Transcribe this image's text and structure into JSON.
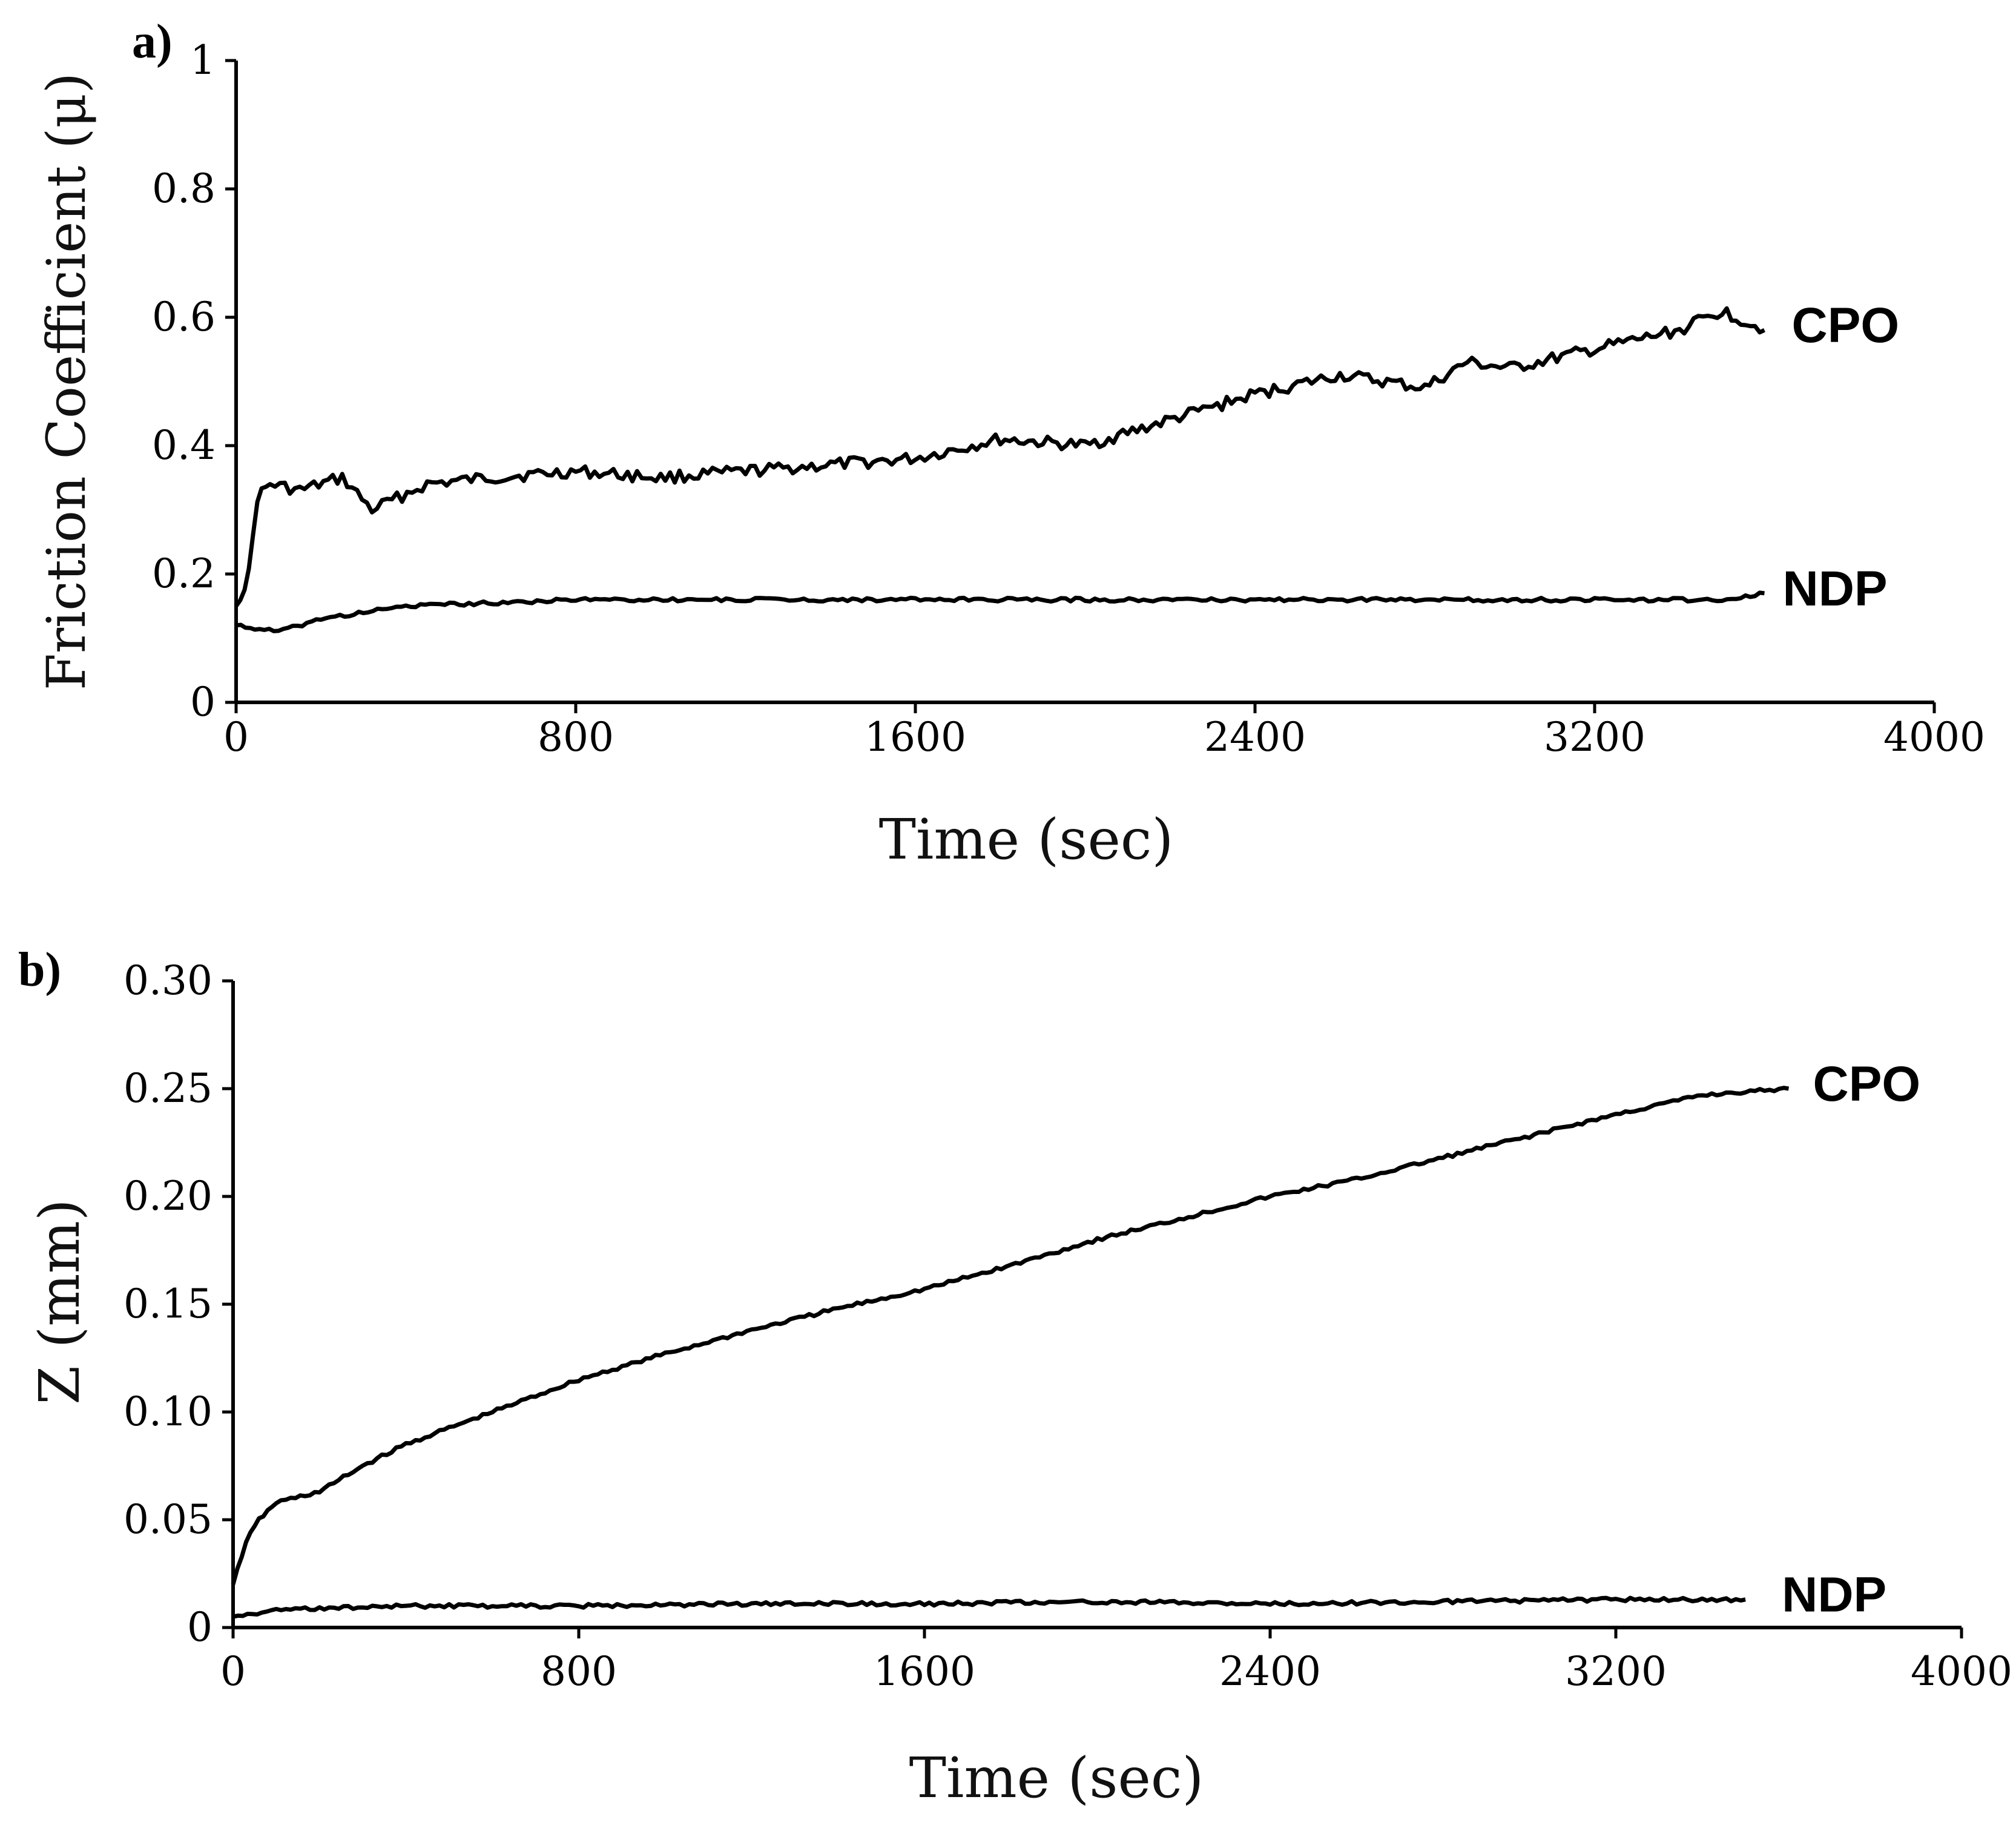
{
  "chart_data": [
    {
      "panel_label": "a)",
      "type": "line",
      "title": "",
      "xlabel": "Time (sec)",
      "ylabel": "Friction Coefficient (μ)",
      "xlim": [
        0,
        4000
      ],
      "ylim": [
        0,
        1
      ],
      "xticks": [
        "0",
        "800",
        "1600",
        "2400",
        "3200",
        "4000"
      ],
      "yticks": [
        "0",
        "0.2",
        "0.4",
        "0.6",
        "0.8",
        "1"
      ],
      "grid": false,
      "series": [
        {
          "name": "CPO",
          "x": [
            0,
            30,
            50,
            80,
            150,
            250,
            320,
            450,
            600,
            800,
            1000,
            1200,
            1400,
            1600,
            1800,
            2000,
            2200,
            2400,
            2600,
            2800,
            2900,
            3000,
            3200,
            3400,
            3500,
            3600
          ],
          "y": [
            0.15,
            0.2,
            0.32,
            0.34,
            0.33,
            0.35,
            0.3,
            0.34,
            0.35,
            0.36,
            0.35,
            0.36,
            0.37,
            0.38,
            0.41,
            0.4,
            0.44,
            0.48,
            0.51,
            0.49,
            0.53,
            0.52,
            0.55,
            0.58,
            0.61,
            0.58
          ]
        },
        {
          "name": "NDP",
          "x": [
            0,
            100,
            200,
            400,
            800,
            1200,
            1600,
            2000,
            2400,
            2800,
            3200,
            3500,
            3600
          ],
          "y": [
            0.12,
            0.11,
            0.13,
            0.15,
            0.16,
            0.16,
            0.16,
            0.16,
            0.16,
            0.16,
            0.16,
            0.16,
            0.17
          ]
        }
      ]
    },
    {
      "panel_label": "b)",
      "type": "line",
      "title": "",
      "xlabel": "Time (sec)",
      "ylabel": "Z (mm)",
      "xlim": [
        0,
        4000
      ],
      "ylim": [
        0,
        0.3
      ],
      "xticks": [
        "0",
        "800",
        "1600",
        "2400",
        "3200",
        "4000"
      ],
      "yticks": [
        "0",
        "0.05",
        "0.10",
        "0.15",
        "0.20",
        "0.25",
        "0.30"
      ],
      "grid": false,
      "series": [
        {
          "name": "CPO",
          "x": [
            0,
            30,
            60,
            100,
            200,
            300,
            400,
            600,
            800,
            1000,
            1200,
            1400,
            1600,
            1800,
            2000,
            2200,
            2400,
            2600,
            2800,
            3000,
            3200,
            3400,
            3600
          ],
          "y": [
            0.02,
            0.04,
            0.05,
            0.058,
            0.063,
            0.075,
            0.085,
            0.1,
            0.115,
            0.127,
            0.138,
            0.148,
            0.157,
            0.168,
            0.18,
            0.19,
            0.2,
            0.208,
            0.218,
            0.228,
            0.238,
            0.247,
            0.25
          ]
        },
        {
          "name": "NDP",
          "x": [
            0,
            100,
            200,
            400,
            800,
            1200,
            1600,
            2000,
            2400,
            2800,
            3200,
            3500
          ],
          "y": [
            0.005,
            0.008,
            0.009,
            0.01,
            0.01,
            0.011,
            0.011,
            0.012,
            0.011,
            0.012,
            0.013,
            0.013
          ]
        }
      ]
    }
  ]
}
